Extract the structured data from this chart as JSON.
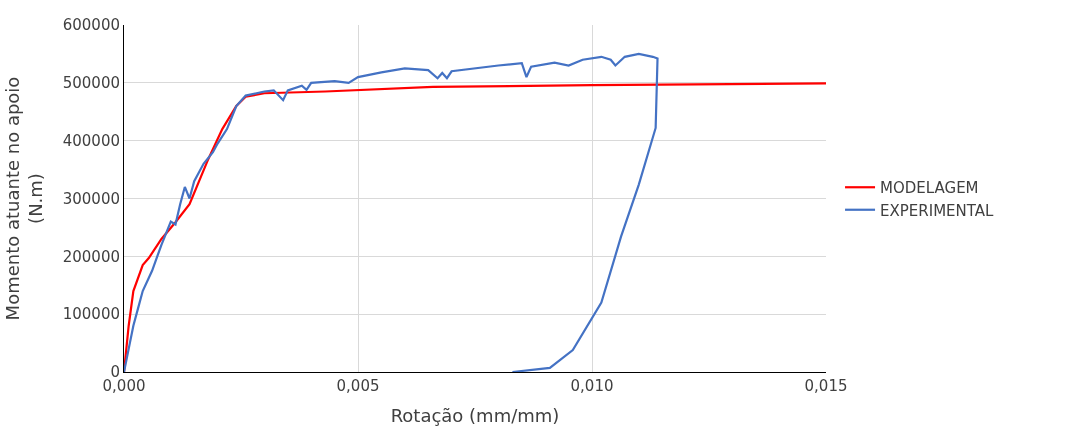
{
  "chart_data": {
    "type": "line",
    "xlabel": "Rotação (mm/mm)",
    "ylabel": "Momento atuante no apoio\n(N.m)",
    "xlim": [
      0,
      0.015
    ],
    "ylim": [
      0,
      600000
    ],
    "xticks": [
      {
        "value": 0,
        "label": "0,000"
      },
      {
        "value": 0.005,
        "label": "0,005"
      },
      {
        "value": 0.01,
        "label": "0,010"
      },
      {
        "value": 0.015,
        "label": "0,015"
      }
    ],
    "yticks": [
      0,
      100000,
      200000,
      300000,
      400000,
      500000,
      600000
    ],
    "grid": true,
    "legend": "right",
    "marker": "none",
    "line_style": "solid",
    "series": [
      {
        "name": "MODELAGEM",
        "color": "#ff0000",
        "x": [
          0,
          0.0001,
          0.0002,
          0.0004,
          0.00053,
          0.0008,
          0.0011,
          0.0014,
          0.0018,
          0.0021,
          0.0024,
          0.0026,
          0.003,
          0.0043,
          0.0066,
          0.01,
          0.015
        ],
        "values": [
          0,
          80000,
          140000,
          185000,
          197000,
          230000,
          259000,
          290000,
          368000,
          420000,
          460000,
          476000,
          482000,
          485000,
          493000,
          496000,
          499000
        ]
      },
      {
        "name": "EXPERIMENTAL",
        "color": "#4472c4",
        "x": [
          0,
          0.0001,
          0.0002,
          0.0003,
          0.0004,
          0.0006,
          0.0008,
          0.001,
          0.0011,
          0.0012,
          0.0013,
          0.0014,
          0.0015,
          0.0017,
          0.0019,
          0.002,
          0.0022,
          0.0023,
          0.0024,
          0.0026,
          0.003,
          0.0032,
          0.0034,
          0.0035,
          0.0038,
          0.0039,
          0.004,
          0.0045,
          0.0048,
          0.005,
          0.0055,
          0.006,
          0.0065,
          0.0067,
          0.0068,
          0.0069,
          0.007,
          0.008,
          0.0085,
          0.0086,
          0.0087,
          0.0092,
          0.0095,
          0.0098,
          0.0102,
          0.0104,
          0.0105,
          0.0107,
          0.011,
          0.0113,
          0.0114,
          0.01136,
          0.011,
          0.01062,
          0.0102,
          0.00959,
          0.0091,
          0.0083
        ],
        "values": [
          0,
          40000,
          80000,
          110000,
          140000,
          175000,
          220000,
          260000,
          255000,
          290000,
          320000,
          300000,
          330000,
          360000,
          380000,
          395000,
          420000,
          440000,
          460000,
          478000,
          485000,
          487000,
          470000,
          487000,
          495000,
          488000,
          500000,
          503000,
          500000,
          510000,
          518000,
          525000,
          522000,
          508000,
          517000,
          508000,
          520000,
          530000,
          534000,
          510000,
          528000,
          535000,
          530000,
          540000,
          545000,
          540000,
          530000,
          545000,
          550000,
          545000,
          542000,
          422000,
          324000,
          234000,
          120000,
          38000,
          7000,
          0
        ]
      }
    ]
  }
}
